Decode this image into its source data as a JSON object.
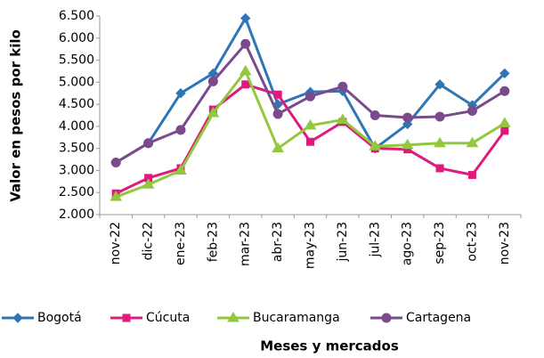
{
  "chart_data": {
    "type": "line",
    "y_label": "Valor en pesos por kilo",
    "x_label": "Meses y mercados",
    "categories": [
      "nov-22",
      "dic-22",
      "ene-23",
      "feb-23",
      "mar-23",
      "abr-23",
      "may-23",
      "jun-23",
      "jul-23",
      "ago-23",
      "sep-23",
      "oct-23",
      "nov-23"
    ],
    "series": [
      {
        "name": "Bogotá",
        "color": "#2e75b6",
        "marker": "diamond",
        "values": [
          3180,
          3620,
          4750,
          5200,
          6450,
          4500,
          4780,
          4800,
          3500,
          4050,
          4950,
          4480,
          5200
        ]
      },
      {
        "name": "Cúcuta",
        "color": "#e0197d",
        "marker": "square",
        "values": [
          2480,
          2830,
          3050,
          4380,
          4950,
          4720,
          3650,
          4100,
          3500,
          3480,
          3050,
          2900,
          3900
        ]
      },
      {
        "name": "Bucaramanga",
        "color": "#92c83e",
        "marker": "triangle",
        "values": [
          2400,
          2680,
          3000,
          4300,
          5250,
          3500,
          4020,
          4150,
          3550,
          3580,
          3620,
          3620,
          4070
        ]
      },
      {
        "name": "Cartagena",
        "color": "#7b4a8c",
        "marker": "circle",
        "values": [
          3180,
          3620,
          3920,
          5020,
          5870,
          4280,
          4680,
          4900,
          4250,
          4200,
          4220,
          4350,
          4800
        ]
      }
    ],
    "ylim": [
      2000,
      6500
    ],
    "yticks": [
      {
        "value": 2000,
        "label": "2.000"
      },
      {
        "value": 2500,
        "label": "2.500"
      },
      {
        "value": 3000,
        "label": "3.000"
      },
      {
        "value": 3500,
        "label": "3.500"
      },
      {
        "value": 4000,
        "label": "4.000"
      },
      {
        "value": 4500,
        "label": "4.500"
      },
      {
        "value": 5000,
        "label": "5.000"
      },
      {
        "value": 5500,
        "label": "5.500"
      },
      {
        "value": 6000,
        "label": "6.000"
      },
      {
        "value": 6500,
        "label": "6.500"
      }
    ],
    "legend": "bottom",
    "grid": false
  }
}
